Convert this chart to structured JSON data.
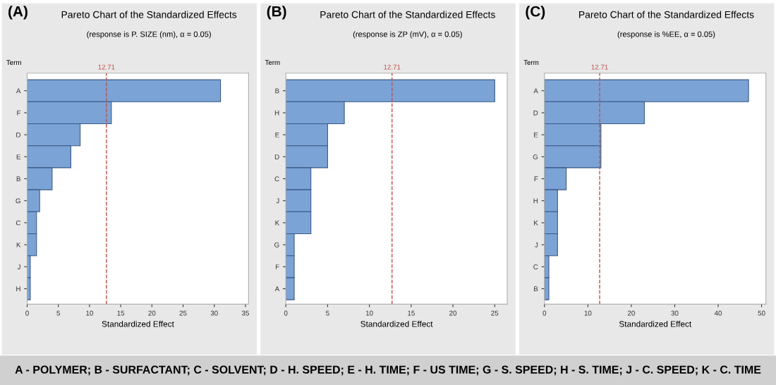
{
  "chart_data": [
    {
      "type": "bar",
      "orientation": "horizontal",
      "title": "Pareto Chart of the Standardized Effects",
      "subtitle": "(response is P. SIZE (nm), α = 0.05)",
      "xlabel": "Standardized Effect",
      "ylabel": "Term",
      "annotations": [
        "(A)"
      ],
      "categories": [
        "A",
        "F",
        "D",
        "E",
        "B",
        "G",
        "C",
        "K",
        "J",
        "H"
      ],
      "values": [
        31,
        13.5,
        8.5,
        7,
        4,
        2,
        1.5,
        1.5,
        0.5,
        0.5
      ],
      "color": "#7ba3d6",
      "xlim": [
        0,
        35.5
      ],
      "xticks": [
        0,
        5,
        10,
        15,
        20,
        25,
        30,
        35
      ],
      "grid": false,
      "ref_lines": [
        {
          "axis": "x",
          "value": 12.71,
          "label": "12.71",
          "color": "#c0504d",
          "line_style": "dashed"
        }
      ]
    },
    {
      "type": "bar",
      "orientation": "horizontal",
      "title": "Pareto Chart of the Standardized Effects",
      "subtitle": "(response is ZP (mV), α = 0.05)",
      "xlabel": "Standardized Effect",
      "ylabel": "Term",
      "annotations": [
        "(B)"
      ],
      "categories": [
        "B",
        "H",
        "E",
        "D",
        "C",
        "J",
        "K",
        "G",
        "F",
        "A"
      ],
      "values": [
        25,
        7,
        5,
        5,
        3,
        3,
        3,
        1,
        1,
        1
      ],
      "color": "#7ba3d6",
      "xlim": [
        0,
        26.5
      ],
      "xticks": [
        0,
        5,
        10,
        15,
        20,
        25
      ],
      "grid": false,
      "ref_lines": [
        {
          "axis": "x",
          "value": 12.71,
          "label": "12.71",
          "color": "#c0504d",
          "line_style": "dashed"
        }
      ]
    },
    {
      "type": "bar",
      "orientation": "horizontal",
      "title": "Pareto Chart of the Standardized Effects",
      "subtitle": "(response is %EE, α = 0.05)",
      "xlabel": "Standardized Effect",
      "ylabel": "Term",
      "annotations": [
        "(C)",
        "A - POLYMER; B - SURFACTANT; C - SOLVENT; D - H. SPEED; E - H. TIME; F - US TIME; G - S. SPEED; H - S. TIME; J - C. SPEED; K - C. TIME"
      ],
      "categories": [
        "A",
        "D",
        "E",
        "G",
        "F",
        "H",
        "K",
        "J",
        "C",
        "B"
      ],
      "values": [
        47,
        23,
        13,
        13,
        5,
        3,
        3,
        3,
        1,
        1
      ],
      "color": "#7ba3d6",
      "xlim": [
        0,
        51
      ],
      "xticks": [
        0,
        10,
        20,
        30,
        40,
        50
      ],
      "grid": false,
      "ref_lines": [
        {
          "axis": "x",
          "value": 12.71,
          "label": "12.71",
          "color": "#c0504d",
          "line_style": "dashed"
        }
      ]
    }
  ]
}
